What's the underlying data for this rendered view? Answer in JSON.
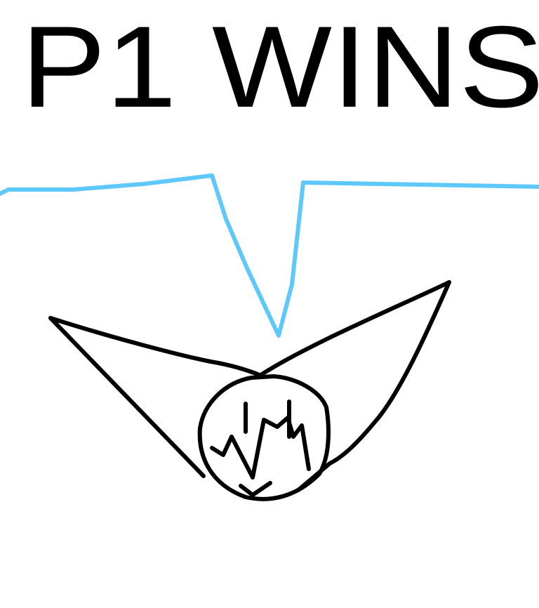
{
  "game": {
    "result_text": "P1 WINS",
    "colors": {
      "background": "#ffffff",
      "ink": "#000000",
      "ground_line": "#5ec8fb"
    },
    "icons": [
      "winner-character-icon"
    ]
  }
}
